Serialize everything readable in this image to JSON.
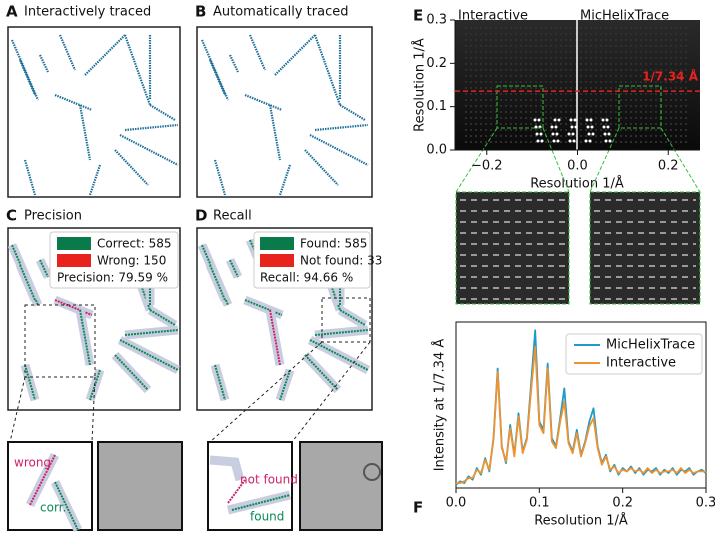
{
  "panels": {
    "A": {
      "letter": "A",
      "title": "Interactively traced"
    },
    "B": {
      "letter": "B",
      "title": "Automatically traced"
    },
    "C": {
      "letter": "C",
      "title": "Precision",
      "legend": [
        "Correct: 585",
        "Wrong: 150"
      ],
      "summary": "Precision: 79.59 %",
      "inset_labels": [
        "wrong",
        "corr."
      ]
    },
    "D": {
      "letter": "D",
      "title": "Recall",
      "legend": [
        "Found: 585",
        "Not found: 33"
      ],
      "summary": "Recall: 94.66 %",
      "inset_labels": [
        "not found",
        "found"
      ]
    },
    "E": {
      "letter": "E",
      "left_label": "Interactive",
      "right_label": "MicHelixTrace",
      "xlabel": "Resolution 1/Å",
      "ylabel": "Resolution 1/Å",
      "xlim": [
        -0.27,
        0.27
      ],
      "ylim": [
        0,
        0.3
      ],
      "xticks": [
        {
          "value": -0.2,
          "label": "−0.2"
        },
        {
          "value": 0,
          "label": "0.0"
        },
        {
          "value": 0.2,
          "label": "0.2"
        }
      ],
      "yticks": [
        {
          "value": 0,
          "label": "0.0"
        },
        0.1,
        0.2,
        0.3
      ],
      "marker": {
        "value": 0.136,
        "label": "1/7.34 Å"
      }
    },
    "F": {
      "letter": "F"
    }
  },
  "chart_data": {
    "type": "line",
    "xlabel": "Resolution 1/Å",
    "ylabel": "Intensity at 1/7.34 Å",
    "x": [
      0,
      0.005,
      0.01,
      0.015,
      0.02,
      0.025,
      0.03,
      0.035,
      0.04,
      0.045,
      0.05,
      0.055,
      0.06,
      0.065,
      0.07,
      0.075,
      0.08,
      0.085,
      0.09,
      0.095,
      0.1,
      0.105,
      0.11,
      0.115,
      0.12,
      0.125,
      0.13,
      0.135,
      0.14,
      0.145,
      0.15,
      0.155,
      0.16,
      0.165,
      0.17,
      0.175,
      0.18,
      0.185,
      0.19,
      0.195,
      0.2,
      0.205,
      0.21,
      0.215,
      0.22,
      0.225,
      0.23,
      0.235,
      0.24,
      0.245,
      0.25,
      0.255,
      0.26,
      0.265,
      0.27,
      0.275,
      0.28,
      0.285,
      0.29,
      0.295,
      0.3
    ],
    "series": [
      {
        "name": "MicHelixTrace",
        "color": "#1f9ac9",
        "values": [
          0.02,
          0.04,
          0.03,
          0.07,
          0.05,
          0.12,
          0.08,
          0.18,
          0.1,
          0.3,
          0.72,
          0.25,
          0.15,
          0.38,
          0.2,
          0.45,
          0.22,
          0.3,
          0.62,
          0.95,
          0.4,
          0.35,
          0.75,
          0.3,
          0.25,
          0.42,
          0.6,
          0.28,
          0.22,
          0.35,
          0.2,
          0.28,
          0.4,
          0.48,
          0.25,
          0.15,
          0.2,
          0.1,
          0.14,
          0.08,
          0.12,
          0.1,
          0.13,
          0.09,
          0.12,
          0.08,
          0.11,
          0.1,
          0.12,
          0.08,
          0.11,
          0.09,
          0.12,
          0.08,
          0.11,
          0.1,
          0.12,
          0.08,
          0.1,
          0.11,
          0.09
        ]
      },
      {
        "name": "Interactive",
        "color": "#f0922e",
        "values": [
          0.03,
          0.03,
          0.04,
          0.06,
          0.06,
          0.11,
          0.09,
          0.17,
          0.11,
          0.29,
          0.7,
          0.24,
          0.16,
          0.36,
          0.19,
          0.43,
          0.21,
          0.29,
          0.58,
          0.85,
          0.38,
          0.33,
          0.72,
          0.28,
          0.24,
          0.4,
          0.52,
          0.27,
          0.21,
          0.33,
          0.19,
          0.27,
          0.37,
          0.42,
          0.24,
          0.14,
          0.19,
          0.11,
          0.13,
          0.09,
          0.11,
          0.1,
          0.12,
          0.1,
          0.11,
          0.09,
          0.12,
          0.09,
          0.11,
          0.09,
          0.1,
          0.1,
          0.11,
          0.09,
          0.12,
          0.09,
          0.11,
          0.09,
          0.1,
          0.1,
          0.1
        ]
      }
    ],
    "xlim": [
      0,
      0.3
    ],
    "ylim": [
      0,
      1
    ],
    "xticks": [
      {
        "value": 0,
        "label": "0.0"
      },
      0.1,
      0.2,
      0.3
    ],
    "legend": "upper right"
  }
}
